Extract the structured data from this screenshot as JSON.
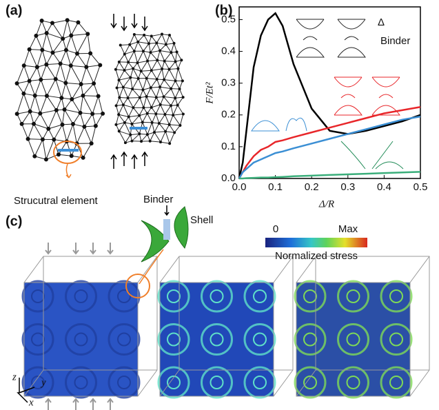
{
  "panel_a": {
    "label": "(a)",
    "caption": "Strucutral element"
  },
  "chart_data": {
    "type": "line",
    "panel_label": "(b)",
    "x_label": "Δ/R",
    "y_label": "F/Et²",
    "annotations": [
      "Δ",
      "Binder"
    ],
    "xlim": [
      0,
      0.5
    ],
    "ylim": [
      0,
      0.54
    ],
    "xticks": [
      {
        "value": 0,
        "label": "0.0"
      },
      0.1,
      0.2,
      0.3,
      0.4,
      0.5
    ],
    "yticks": [
      {
        "value": 0,
        "label": "0.0"
      },
      0.1,
      0.2,
      0.3,
      0.4,
      0.5
    ],
    "x": [
      0,
      0.01,
      0.02,
      0.04,
      0.06,
      0.08,
      0.1,
      0.12,
      0.15,
      0.2,
      0.25,
      0.3,
      0.35,
      0.4,
      0.45,
      0.5
    ],
    "series": [
      {
        "color": "#000000",
        "values": [
          0,
          0.05,
          0.15,
          0.35,
          0.45,
          0.5,
          0.52,
          0.48,
          0.36,
          0.22,
          0.15,
          0.14,
          0.15,
          0.165,
          0.18,
          0.2
        ]
      },
      {
        "color": "#e8262a",
        "values": [
          0,
          0.02,
          0.04,
          0.07,
          0.09,
          0.1,
          0.115,
          0.12,
          0.13,
          0.145,
          0.16,
          0.175,
          0.19,
          0.205,
          0.215,
          0.225
        ]
      },
      {
        "color": "#3b8fd4",
        "values": [
          0,
          0.02,
          0.03,
          0.05,
          0.06,
          0.07,
          0.08,
          0.085,
          0.095,
          0.11,
          0.125,
          0.14,
          0.155,
          0.17,
          0.185,
          0.195
        ]
      },
      {
        "color": "#3aae7a",
        "values": [
          0,
          0,
          0.001,
          0.002,
          0.003,
          0.003,
          0.004,
          0.005,
          0.007,
          0.009,
          0.011,
          0.013,
          0.015,
          0.017,
          0.019,
          0.021
        ]
      }
    ]
  },
  "panel_c": {
    "label": "(c)",
    "binder": "Binder",
    "shell": "Shell",
    "colorbar_min": "0",
    "colorbar_max": "Max",
    "colorbar_title": "Normalized stress",
    "axes": [
      "z",
      "y",
      "x"
    ]
  }
}
